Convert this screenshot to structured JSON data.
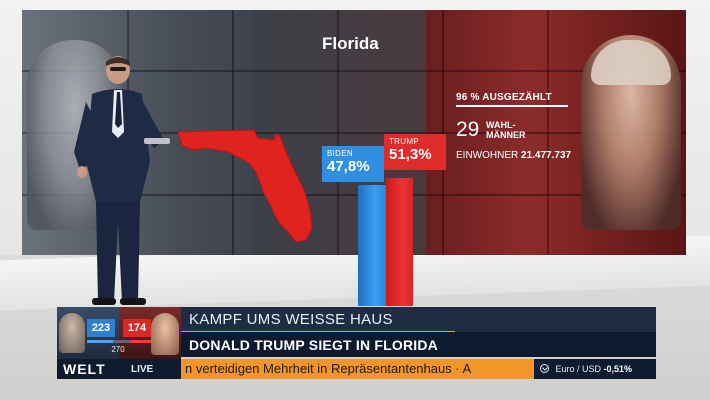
{
  "graphic": {
    "state": "Florida",
    "counted": "96 % AUSGEZÄHLT",
    "electors_number": "29",
    "electors_label": "WAHL-\nMÄNNER",
    "population_label": "EINWOHNER",
    "population_value": "21.477.737",
    "candidates": [
      {
        "name": "BIDEN",
        "percent": "47,8%",
        "value": 47.8,
        "color": "#2f8fe0"
      },
      {
        "name": "TRUMP",
        "percent": "51,3%",
        "value": 51.3,
        "color": "#e02b2b"
      }
    ]
  },
  "lower_third": {
    "electoral_biden": "223",
    "electoral_trump": "174",
    "electoral_target": "270",
    "topic": "KAMPF UMS WEISSE HAUS",
    "headline": "DONALD TRUMP SIEGT IN FLORIDA",
    "brand": "WELT",
    "live": "LIVE",
    "ticker": "n verteidigen Mehrheit in Repräsentantenhaus · A",
    "market_label": "Euro / USD",
    "market_value": "-0,51%",
    "market_icon": "trend-down-icon"
  },
  "colors": {
    "biden_blue": "#2f8fe0",
    "trump_red": "#e02b2b",
    "ticker_orange": "#f2962a",
    "navy": "#0e1a2e"
  }
}
